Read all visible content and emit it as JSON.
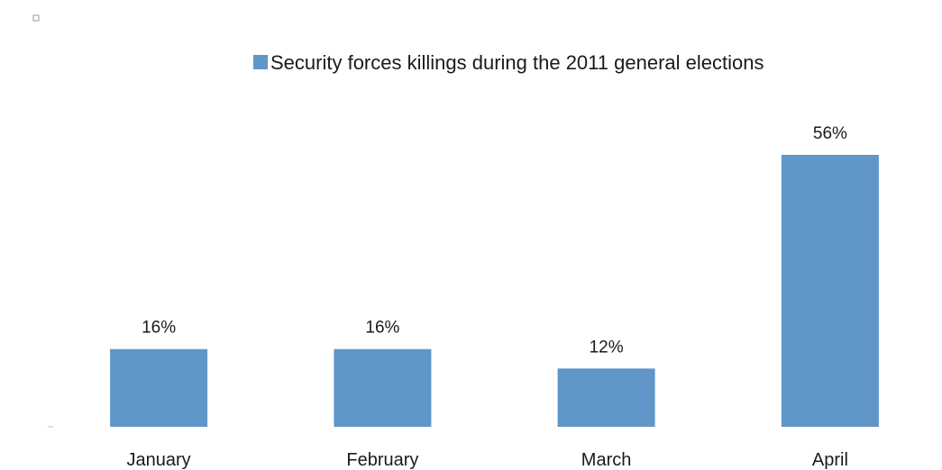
{
  "chart_data": {
    "type": "bar",
    "categories": [
      "January",
      "February",
      "March",
      "April"
    ],
    "series": [
      {
        "name": "Security forces killings during the 2011 general elections",
        "values": [
          16,
          16,
          12,
          56
        ],
        "labels": [
          "16%",
          "16%",
          "12%",
          "56%"
        ]
      }
    ],
    "unit": "%",
    "title": "",
    "xlabel": "",
    "ylabel": "",
    "ylim": [
      0,
      56
    ],
    "grid": false,
    "legend": "top",
    "colors": {
      "bar": "#6096c8",
      "text": "#1a1a1a",
      "axis": "#d9d9d9"
    }
  }
}
